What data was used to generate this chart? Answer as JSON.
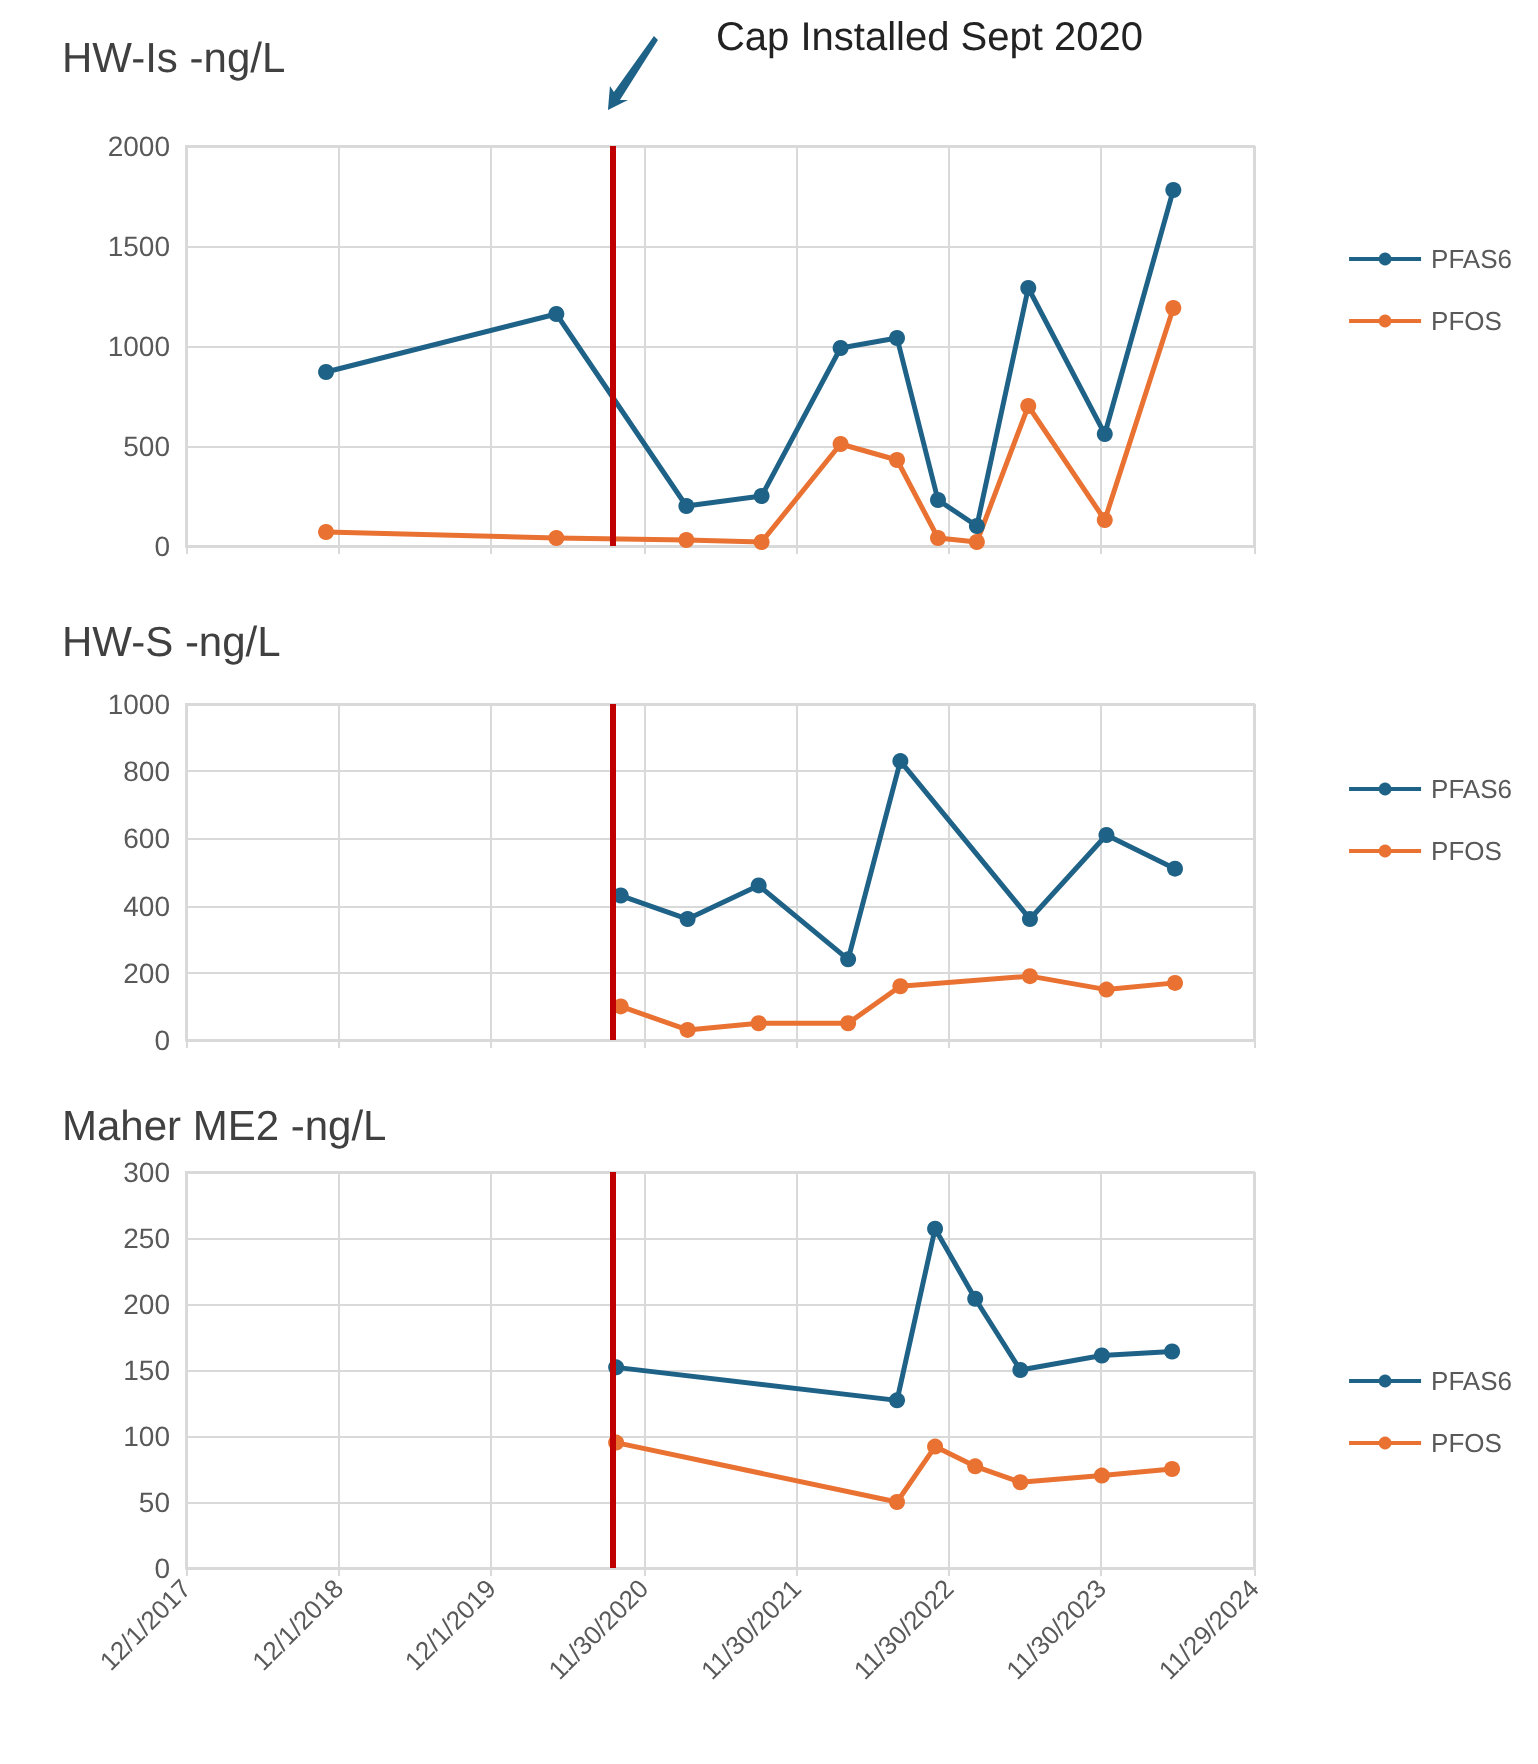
{
  "chart_data": [
    {
      "type": "line",
      "title": "HW-Is -ng/L",
      "xlim": [
        "2017-12-01",
        "2024-11-29"
      ],
      "xticks": [
        {
          "value": "2017-12-01",
          "label": null
        },
        {
          "value": "2018-12-01",
          "label": null
        },
        {
          "value": "2019-12-01",
          "label": null
        },
        {
          "value": "2020-11-30",
          "label": null
        },
        {
          "value": "2021-11-30",
          "label": null
        },
        {
          "value": "2022-11-30",
          "label": null
        },
        {
          "value": "2023-11-30",
          "label": null
        },
        {
          "value": "2024-11-29",
          "label": null
        }
      ],
      "ylim": [
        0,
        2000
      ],
      "yticks": [
        0,
        500,
        1000,
        1500,
        2000
      ],
      "tick_labels": "y",
      "grid": true,
      "legend": "right",
      "marker": "circle",
      "annotations": [
        "Cap Installed Sept 2020"
      ],
      "ref_lines": [
        {
          "axis": "x",
          "value": "2020-09-15",
          "color": "#c00000"
        }
      ],
      "series": [
        {
          "name": "PFAS6",
          "color": "#1f6287",
          "x": [
            "2018-11-01",
            "2020-05-05",
            "2021-03-12",
            "2021-09-08",
            "2022-03-16",
            "2022-07-29",
            "2022-11-04",
            "2023-02-05",
            "2023-06-08",
            "2023-12-08",
            "2024-05-20"
          ],
          "values": [
            870,
            1160,
            200,
            250,
            990,
            1040,
            230,
            100,
            1290,
            560,
            1780
          ]
        },
        {
          "name": "PFOS",
          "color": "#e97132",
          "x": [
            "2018-11-01",
            "2020-05-05",
            "2021-03-12",
            "2021-09-08",
            "2022-03-16",
            "2022-07-29",
            "2022-11-04",
            "2023-02-05",
            "2023-06-08",
            "2023-12-08",
            "2024-05-20"
          ],
          "values": [
            70,
            40,
            30,
            20,
            510,
            430,
            40,
            20,
            700,
            130,
            1190
          ]
        }
      ]
    },
    {
      "type": "line",
      "title": "HW-S -ng/L",
      "xlim": [
        "2017-12-01",
        "2024-11-29"
      ],
      "xticks": [
        {
          "value": "2017-12-01",
          "label": null
        },
        {
          "value": "2018-12-01",
          "label": null
        },
        {
          "value": "2019-12-01",
          "label": null
        },
        {
          "value": "2020-11-30",
          "label": null
        },
        {
          "value": "2021-11-30",
          "label": null
        },
        {
          "value": "2022-11-30",
          "label": null
        },
        {
          "value": "2023-11-30",
          "label": null
        },
        {
          "value": "2024-11-29",
          "label": null
        }
      ],
      "ylim": [
        0,
        1000
      ],
      "yticks": [
        0,
        200,
        400,
        600,
        800,
        1000
      ],
      "tick_labels": "y",
      "grid": true,
      "legend": "right",
      "marker": "circle",
      "ref_lines": [
        {
          "axis": "x",
          "value": "2020-09-15",
          "color": "#c00000"
        }
      ],
      "series": [
        {
          "name": "PFAS6",
          "color": "#1f6287",
          "x": [
            "2020-10-06",
            "2021-03-15",
            "2021-09-01",
            "2022-04-03",
            "2022-08-06",
            "2023-06-12",
            "2023-12-12",
            "2024-05-24"
          ],
          "values": [
            430,
            360,
            460,
            240,
            830,
            360,
            610,
            510
          ]
        },
        {
          "name": "PFOS",
          "color": "#e97132",
          "x": [
            "2020-10-06",
            "2021-03-15",
            "2021-09-01",
            "2022-04-03",
            "2022-08-06",
            "2023-06-12",
            "2023-12-12",
            "2024-05-24"
          ],
          "values": [
            100,
            30,
            50,
            50,
            160,
            190,
            150,
            170
          ]
        }
      ]
    },
    {
      "type": "line",
      "title": "Maher ME2 -ng/L",
      "xlim": [
        "2017-12-01",
        "2024-11-29"
      ],
      "xticks": [
        {
          "value": "2017-12-01",
          "label": "12/1/2017"
        },
        {
          "value": "2018-12-01",
          "label": "12/1/2018"
        },
        {
          "value": "2019-12-01",
          "label": "12/1/2019"
        },
        {
          "value": "2020-11-30",
          "label": "11/30/2020"
        },
        {
          "value": "2021-11-30",
          "label": "11/30/2021"
        },
        {
          "value": "2022-11-30",
          "label": "11/30/2022"
        },
        {
          "value": "2023-11-30",
          "label": "11/30/2023"
        },
        {
          "value": "2024-11-29",
          "label": "11/29/2024"
        }
      ],
      "ylim": [
        0,
        300
      ],
      "yticks": [
        0,
        50,
        100,
        150,
        200,
        250,
        300
      ],
      "grid": true,
      "legend": "right",
      "marker": "circle",
      "ref_lines": [
        {
          "axis": "x",
          "value": "2020-09-15",
          "color": "#c00000"
        }
      ],
      "series": [
        {
          "name": "PFAS6",
          "color": "#1f6287",
          "x": [
            "2020-09-25",
            "2022-07-29",
            "2022-10-28",
            "2023-02-01",
            "2023-05-20",
            "2023-12-01",
            "2024-05-17"
          ],
          "values": [
            152,
            127,
            257,
            204,
            150,
            161,
            164
          ]
        },
        {
          "name": "PFOS",
          "color": "#e97132",
          "x": [
            "2020-09-25",
            "2022-07-29",
            "2022-10-28",
            "2023-02-01",
            "2023-05-20",
            "2023-12-01",
            "2024-05-17"
          ],
          "values": [
            95,
            50,
            92,
            77,
            65,
            70,
            75
          ]
        }
      ]
    }
  ]
}
